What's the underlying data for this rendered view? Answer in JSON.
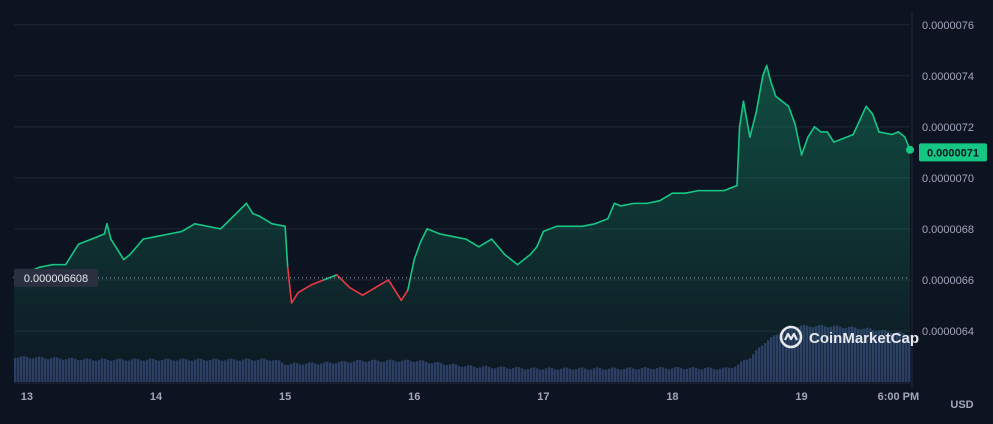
{
  "watermark": "CoinMarketCap",
  "currency_label": "USD",
  "colors": {
    "up": "#16c784",
    "down": "#ea3943",
    "volume": "#2d3a63",
    "grid": "#1f2736",
    "background": "#0d1421"
  },
  "chart_data": {
    "type": "line",
    "title": "",
    "xlabel": "",
    "ylabel": "",
    "unit": "USD",
    "ylim": [
      6.2e-07,
      7.65e-07
    ],
    "y_ticks": [
      "0.0000064",
      "0.0000066",
      "0.0000068",
      "0.0000070",
      "0.0000072",
      "0.0000074",
      "0.0000076"
    ],
    "x_ticks": [
      "13",
      "14",
      "15",
      "16",
      "17",
      "18",
      "19",
      "6:00 PM"
    ],
    "reference_price": 6.608e-07,
    "reference_label": "0.000006608",
    "current_price": 7.1e-07,
    "current_label": "0.0000071",
    "grid": true,
    "series": [
      {
        "x": [
          12.9,
          13.0,
          13.1,
          13.2,
          13.3,
          13.4,
          13.5,
          13.6,
          13.62,
          13.65,
          13.7,
          13.75,
          13.8,
          13.9,
          14.0,
          14.1,
          14.2,
          14.3,
          14.5,
          14.6,
          14.7,
          14.75,
          14.8,
          14.9,
          15.0,
          15.02,
          15.05,
          15.1,
          15.2,
          15.3,
          15.4,
          15.5,
          15.6,
          15.7,
          15.8,
          15.9,
          15.95,
          16.0,
          16.05,
          16.1,
          16.2,
          16.3,
          16.4,
          16.5,
          16.6,
          16.7,
          16.8,
          16.9,
          16.95,
          17.0,
          17.1,
          17.2,
          17.3,
          17.4,
          17.5,
          17.55,
          17.6,
          17.7,
          17.8,
          17.9,
          18.0,
          18.1,
          18.2,
          18.3,
          18.35,
          18.4,
          18.45,
          18.5,
          18.52,
          18.55,
          18.6,
          18.65,
          18.7,
          18.73,
          18.76,
          18.8,
          18.85,
          18.9,
          18.95,
          19.0,
          19.05,
          19.1,
          19.15,
          19.2,
          19.25,
          19.3,
          19.4,
          19.5,
          19.55,
          19.6,
          19.7,
          19.75,
          19.8,
          19.84
        ],
        "y": [
          6.61e-07,
          6.63e-07,
          6.65e-07,
          6.66e-07,
          6.66e-07,
          6.74e-07,
          6.76e-07,
          6.78e-07,
          6.82e-07,
          6.76e-07,
          6.72e-07,
          6.68e-07,
          6.7e-07,
          6.76e-07,
          6.77e-07,
          6.78e-07,
          6.79e-07,
          6.82e-07,
          6.8e-07,
          6.85e-07,
          6.9e-07,
          6.86e-07,
          6.85e-07,
          6.82e-07,
          6.81e-07,
          6.65e-07,
          6.51e-07,
          6.55e-07,
          6.58e-07,
          6.6e-07,
          6.62e-07,
          6.57e-07,
          6.54e-07,
          6.57e-07,
          6.6e-07,
          6.52e-07,
          6.56e-07,
          6.68e-07,
          6.75e-07,
          6.8e-07,
          6.78e-07,
          6.77e-07,
          6.76e-07,
          6.73e-07,
          6.76e-07,
          6.7e-07,
          6.66e-07,
          6.7e-07,
          6.73e-07,
          6.79e-07,
          6.81e-07,
          6.81e-07,
          6.81e-07,
          6.82e-07,
          6.84e-07,
          6.9e-07,
          6.89e-07,
          6.9e-07,
          6.9e-07,
          6.91e-07,
          6.94e-07,
          6.94e-07,
          6.95e-07,
          6.95e-07,
          6.95e-07,
          6.95e-07,
          6.96e-07,
          6.97e-07,
          7.2e-07,
          7.3e-07,
          7.16e-07,
          7.26e-07,
          7.4e-07,
          7.44e-07,
          7.38e-07,
          7.32e-07,
          7.3e-07,
          7.28e-07,
          7.21e-07,
          7.09e-07,
          7.16e-07,
          7.2e-07,
          7.18e-07,
          7.18e-07,
          7.14e-07,
          7.15e-07,
          7.17e-07,
          7.28e-07,
          7.25e-07,
          7.18e-07,
          7.17e-07,
          7.18e-07,
          7.16e-07,
          7.11e-07
        ]
      }
    ],
    "volume": {
      "x": [
        12.9,
        13.5,
        14.0,
        14.9,
        15.0,
        15.3,
        15.6,
        16.0,
        16.4,
        16.9,
        17.5,
        18.0,
        18.4,
        18.5,
        18.55,
        18.6,
        18.7,
        18.9,
        19.2,
        19.5,
        19.84
      ],
      "relative": [
        0.45,
        0.4,
        0.4,
        0.4,
        0.32,
        0.34,
        0.38,
        0.38,
        0.28,
        0.24,
        0.24,
        0.25,
        0.24,
        0.3,
        0.4,
        0.45,
        0.7,
        1.0,
        1.0,
        0.95,
        0.85
      ]
    }
  }
}
